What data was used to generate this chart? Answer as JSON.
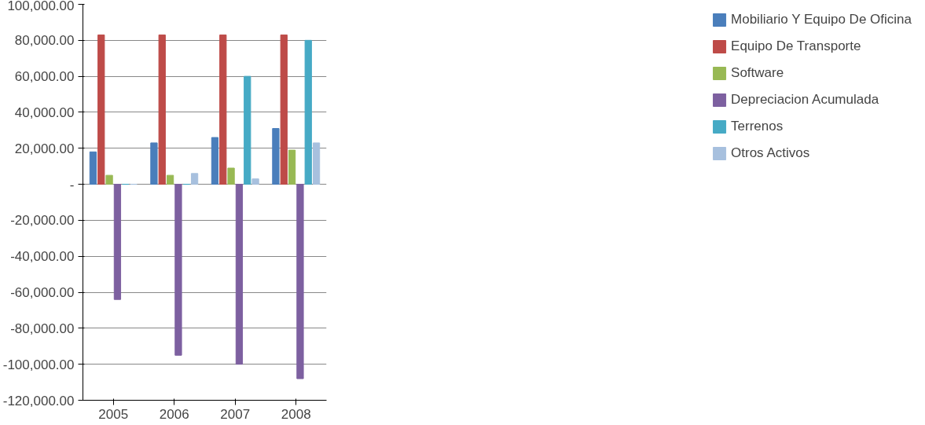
{
  "chart_data": {
    "type": "bar",
    "categories": [
      "2005",
      "2006",
      "2007",
      "2008"
    ],
    "series": [
      {
        "name": "Mobiliario Y Equipo De Oficina",
        "color": "#4a7ebb",
        "values": [
          18000,
          23000,
          26000,
          31000
        ]
      },
      {
        "name": "Equipo De Transporte",
        "color": "#be4b48",
        "values": [
          83000,
          83000,
          83000,
          83000
        ]
      },
      {
        "name": "Software",
        "color": "#98b954",
        "values": [
          5000,
          5000,
          9000,
          19000
        ]
      },
      {
        "name": "Depreciacion Acumulada",
        "color": "#7d60a0",
        "values": [
          -64000,
          -95000,
          -100000,
          -108000
        ]
      },
      {
        "name": "Terrenos",
        "color": "#46aac5",
        "values": [
          0,
          0,
          60000,
          80000
        ]
      },
      {
        "name": "Otros Activos",
        "color": "#a7c0de",
        "values": [
          0,
          6000,
          3000,
          23000
        ]
      }
    ],
    "ylim": [
      -120000,
      100000
    ],
    "yticks": [
      {
        "value": -120000,
        "label": "-120,000.00"
      },
      {
        "value": -100000,
        "label": "-100,000.00"
      },
      {
        "value": -80000,
        "label": "-80,000.00"
      },
      {
        "value": -60000,
        "label": "-60,000.00"
      },
      {
        "value": -40000,
        "label": "-40,000.00"
      },
      {
        "value": -20000,
        "label": "-20,000.00"
      },
      {
        "value": 0,
        "label": "-"
      },
      {
        "value": 20000,
        "label": "20,000.00"
      },
      {
        "value": 40000,
        "label": "40,000.00"
      },
      {
        "value": 60000,
        "label": "60,000.00"
      },
      {
        "value": 80000,
        "label": "80,000.00"
      },
      {
        "value": 100000,
        "label": "100,000.00"
      }
    ],
    "grid": "y",
    "legend": "right"
  }
}
